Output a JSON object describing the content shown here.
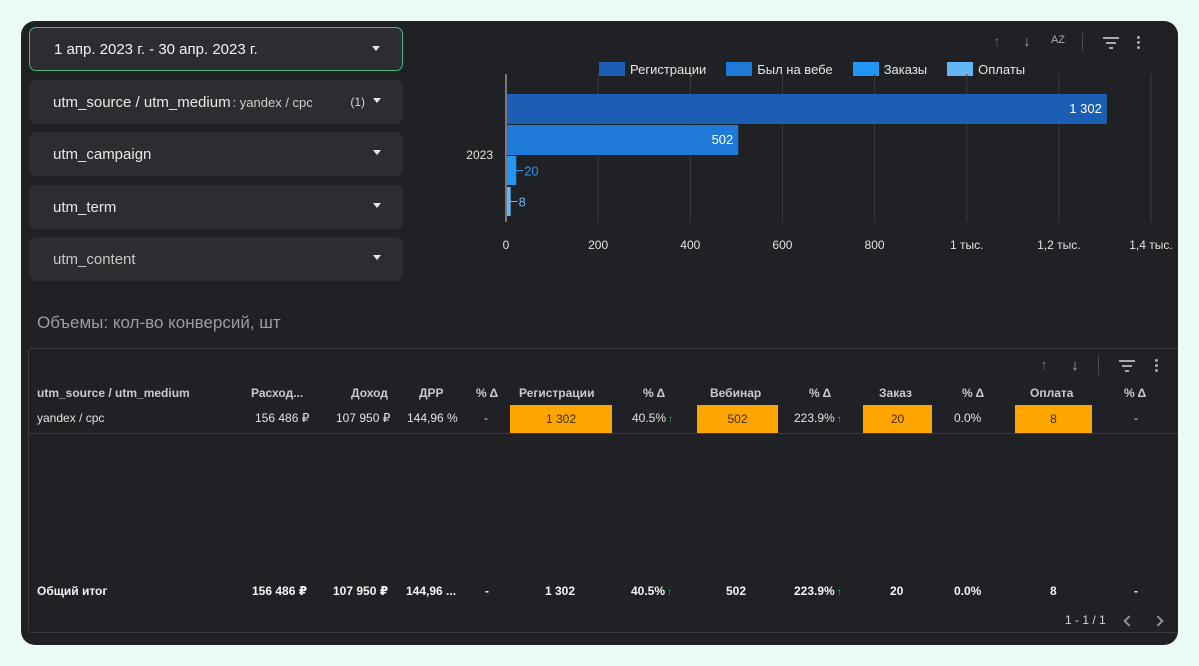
{
  "filters": {
    "date_range": "1 апр. 2023 г. - 30 апр. 2023 г.",
    "source_medium": {
      "label": "utm_source / utm_medium",
      "value": ": yandex / cpc",
      "count": "(1)"
    },
    "campaign": "utm_campaign",
    "term": "utm_term",
    "content": "utm_content"
  },
  "chart_data": {
    "type": "bar",
    "orientation": "horizontal",
    "categories": [
      "2023"
    ],
    "series": [
      {
        "name": "Регистрации",
        "values": [
          1302
        ],
        "label": "1 302",
        "color": "#1a5fb4"
      },
      {
        "name": "Был на вебе",
        "values": [
          502
        ],
        "label": "502",
        "color": "#1e7ad6"
      },
      {
        "name": "Заказы",
        "values": [
          20
        ],
        "label": "20",
        "color": "#2196f3"
      },
      {
        "name": "Оплаты",
        "values": [
          8
        ],
        "label": "8",
        "color": "#64b5f6"
      }
    ],
    "xlim": [
      0,
      1400
    ],
    "x_ticks": [
      "0",
      "200",
      "400",
      "600",
      "800",
      "1 тыс.",
      "1,2 тыс.",
      "1,4 тыс."
    ],
    "grid": true,
    "legend": "top"
  },
  "section_title": "Объемы: кол-во конверсий, шт",
  "table": {
    "headers": [
      "utm_source / utm_medium",
      "Расход...",
      "Доход",
      "ДРР",
      "% Δ",
      "Регистрации",
      "% Δ",
      "Вебинар",
      "% Δ",
      "Заказ",
      "% Δ",
      "Оплата",
      "% Δ"
    ],
    "row": [
      "yandex / cpc",
      "156 486 ₽",
      "107 950 ₽",
      "144,96 %",
      "-",
      "1 302",
      "40.5%",
      "502",
      "223.9%",
      "20",
      "0.0%",
      "8",
      "-"
    ],
    "total": [
      "Общий итог",
      "156 486 ₽",
      "107 950 ₽",
      "144,96 ...",
      "-",
      "1 302",
      "40.5%",
      "502",
      "223.9%",
      "20",
      "0.0%",
      "8",
      "-"
    ],
    "pagination": "1 - 1 / 1",
    "highlight_color": "#ffa500"
  },
  "icons": {
    "sort_up": "↑",
    "sort_down": "↓",
    "sort_az": "AZ",
    "up_arrow": "↑"
  }
}
